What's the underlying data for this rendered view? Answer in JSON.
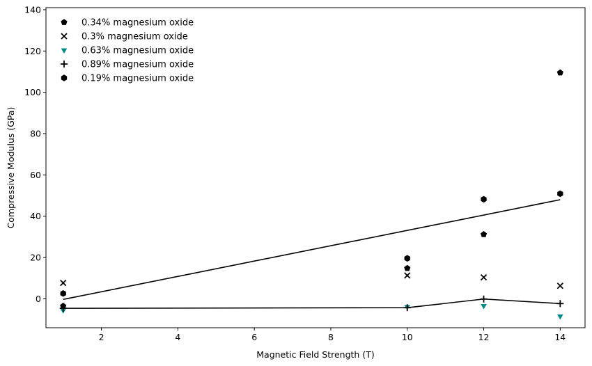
{
  "chart_data": {
    "type": "scatter",
    "xlabel": "Magnetic Field Strength (T)",
    "ylabel": "Compressive Modulus (GPa)",
    "xlim": [
      0.55,
      14.65
    ],
    "ylim": [
      -14,
      141
    ],
    "xticks": [
      2,
      4,
      6,
      8,
      10,
      12,
      14
    ],
    "yticks": [
      0,
      20,
      40,
      60,
      80,
      100,
      120,
      140
    ],
    "grid": false,
    "legend_position": "top-left",
    "series": [
      {
        "name": "0.34% magnesium oxide",
        "marker": "pentagon",
        "color": "#000000",
        "x": [
          1,
          10,
          12,
          14
        ],
        "y": [
          -3.5,
          14.8,
          31.2,
          109.5
        ]
      },
      {
        "name": "0.3% magnesium oxide",
        "marker": "x",
        "color": "#000000",
        "x": [
          1,
          10,
          12,
          14
        ],
        "y": [
          7.7,
          11.3,
          10.4,
          6.3
        ]
      },
      {
        "name": "0.63% magnesium oxide",
        "marker": "triangle-down",
        "color": "#008b8b",
        "x": [
          1,
          10,
          12,
          14
        ],
        "y": [
          -5.5,
          -3.8,
          -3.4,
          -8.4
        ]
      },
      {
        "name": "0.89% magnesium oxide",
        "marker": "plus",
        "color": "#000000",
        "x": [
          1,
          10,
          12,
          14
        ],
        "y": [
          -4.6,
          -4.3,
          -0.1,
          -2.3
        ]
      },
      {
        "name": "0.19% magnesium oxide",
        "marker": "hexagon",
        "color": "#000000",
        "x": [
          1,
          10,
          12,
          14
        ],
        "y": [
          2.6,
          19.6,
          48.2,
          50.9
        ]
      }
    ],
    "lines": [
      {
        "color": "#000000",
        "x": [
          1,
          14
        ],
        "y": [
          -0.3,
          48.0
        ]
      },
      {
        "color": "#000000",
        "x": [
          1,
          10,
          12,
          14
        ],
        "y": [
          -4.6,
          -4.3,
          -0.1,
          -2.3
        ]
      }
    ]
  }
}
